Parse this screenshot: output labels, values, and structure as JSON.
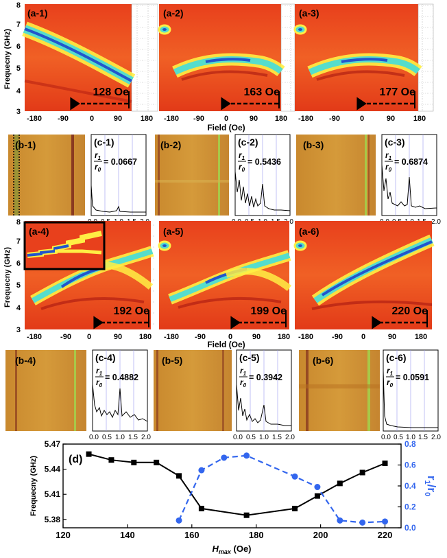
{
  "figure": {
    "axis_labels": {
      "frequency_y": "Frequecny (GHz)",
      "field_x": "Field (Oe)"
    },
    "top_row": {
      "y_ticks": [
        "3",
        "4",
        "5",
        "6",
        "7",
        "8"
      ],
      "x_ticks": [
        "-180",
        "-90",
        "0",
        "90",
        "180"
      ],
      "panels": [
        {
          "label": "(a-1)",
          "hmax": "128 Oe"
        },
        {
          "label": "(a-2)",
          "hmax": "163 Oe"
        },
        {
          "label": "(a-3)",
          "hmax": "177 Oe"
        }
      ]
    },
    "bottom_row": {
      "y_ticks": [
        "3",
        "4",
        "5",
        "6",
        "7",
        "8"
      ],
      "x_ticks": [
        "-180",
        "-90",
        "0",
        "90",
        "180"
      ],
      "panels": [
        {
          "label": "(a-4)",
          "hmax": "192 Oe"
        },
        {
          "label": "(a-5)",
          "hmax": "199 Oe"
        },
        {
          "label": "(a-6)",
          "hmax": "220 Oe"
        }
      ]
    },
    "b_labels": [
      "(b-1)",
      "(b-2)",
      "(b-3)",
      "(b-4)",
      "(b-5)",
      "(b-6)"
    ],
    "c_panels": [
      {
        "label": "(c-1)",
        "ratio": "= 0.0667"
      },
      {
        "label": "(c-2)",
        "ratio": "= 0.5436"
      },
      {
        "label": "(c-3)",
        "ratio": "= 0.6874"
      },
      {
        "label": "(c-4)",
        "ratio": "= 0.4882"
      },
      {
        "label": "(c-5)",
        "ratio": "= 0.3942"
      },
      {
        "label": "(c-6)",
        "ratio": "= 0.0591"
      }
    ],
    "c_ticks": [
      "0.0",
      "0.5",
      "1.0",
      "1.5",
      "2.0"
    ],
    "ratio_symbol": {
      "num": "r",
      "num_sub": "1",
      "den": "r",
      "den_sub": "0"
    },
    "colors": {
      "freq_series": "#000000",
      "ratio_series": "#3366ee",
      "inset_border": "#000000"
    }
  },
  "chart_data": {
    "type": "line",
    "panel_label": "(d)",
    "xlabel": "H",
    "xlabel_sub": "max",
    "xlabel_unit": " (Oe)",
    "ylabel_left": "Frequecny (GHz)",
    "ylabel_right": "r",
    "ylabel_right_sub1": "1",
    "ylabel_right_mid": "/r",
    "ylabel_right_sub2": "0",
    "xlim": [
      120,
      225
    ],
    "xticks": [
      "120",
      "140",
      "160",
      "180",
      "200",
      "220"
    ],
    "ylim_left": [
      5.37,
      5.47
    ],
    "yticks_left": [
      "5.38",
      "5.41",
      "5.44",
      "5.47"
    ],
    "ylim_right": [
      0.0,
      0.8
    ],
    "yticks_right": [
      "0.0",
      "0.2",
      "0.4",
      "0.6",
      "0.8"
    ],
    "series": [
      {
        "name": "Frequency",
        "axis": "left",
        "style": "solid-square",
        "x": [
          128,
          135,
          142,
          149,
          156,
          163,
          177,
          192,
          199,
          206,
          213,
          220
        ],
        "values": [
          5.458,
          5.451,
          5.448,
          5.448,
          5.432,
          5.393,
          5.385,
          5.393,
          5.408,
          5.423,
          5.436,
          5.447
        ]
      },
      {
        "name": "r1/r0",
        "axis": "right",
        "style": "dashed-circle",
        "x": [
          156,
          163,
          170,
          177,
          192,
          199,
          206,
          213,
          220
        ],
        "values": [
          0.07,
          0.55,
          0.67,
          0.69,
          0.49,
          0.39,
          0.07,
          0.05,
          0.06
        ]
      }
    ]
  }
}
